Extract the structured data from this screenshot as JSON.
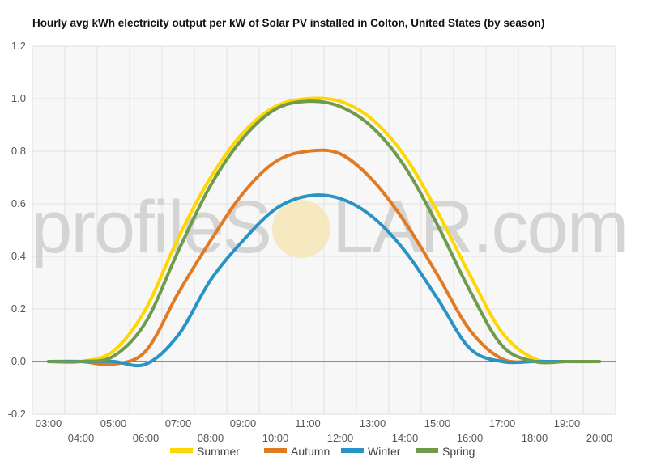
{
  "chart_data": {
    "type": "line",
    "title": "Hourly avg kWh electricity output per kW of Solar PV installed in Colton, United States (by season)",
    "x": [
      "03:00",
      "04:00",
      "05:00",
      "06:00",
      "07:00",
      "08:00",
      "09:00",
      "10:00",
      "11:00",
      "12:00",
      "13:00",
      "14:00",
      "15:00",
      "16:00",
      "17:00",
      "18:00",
      "19:00",
      "20:00"
    ],
    "x_tick_labels": [
      "03:00",
      "04:00",
      "05:00",
      "06:00",
      "07:00",
      "08:00",
      "09:00",
      "10:00",
      "11:00",
      "12:00",
      "13:00",
      "14:00",
      "15:00",
      "16:00",
      "17:00",
      "18:00",
      "19:00",
      "20:00"
    ],
    "y_tick_labels": [
      "1.2",
      "1.0",
      "0.8",
      "0.6",
      "0.4",
      "0.2",
      "0.0",
      "-0.2"
    ],
    "ylim": [
      -0.2,
      1.2
    ],
    "grid": true,
    "legend_position": "bottom",
    "series": [
      {
        "name": "Summer",
        "color": "#FFD700",
        "values": [
          0,
          0,
          0.04,
          0.2,
          0.47,
          0.7,
          0.87,
          0.97,
          1.0,
          0.99,
          0.92,
          0.78,
          0.57,
          0.33,
          0.11,
          0.01,
          0,
          0
        ]
      },
      {
        "name": "Autumn",
        "color": "#E07B24",
        "values": [
          0,
          0,
          -0.01,
          0.04,
          0.26,
          0.46,
          0.64,
          0.76,
          0.8,
          0.79,
          0.69,
          0.53,
          0.33,
          0.12,
          0.01,
          0,
          0,
          0
        ]
      },
      {
        "name": "Winter",
        "color": "#2A93C5",
        "values": [
          0,
          0,
          0,
          -0.01,
          0.1,
          0.31,
          0.46,
          0.58,
          0.63,
          0.62,
          0.55,
          0.42,
          0.24,
          0.05,
          0,
          0,
          0,
          0
        ]
      },
      {
        "name": "Spring",
        "color": "#6F9B4C",
        "values": [
          0,
          0,
          0.02,
          0.15,
          0.42,
          0.67,
          0.85,
          0.96,
          0.99,
          0.97,
          0.89,
          0.74,
          0.52,
          0.27,
          0.06,
          0,
          0,
          0
        ]
      }
    ]
  },
  "watermark": {
    "text_left": "profileS",
    "text_right": "LAR.com"
  }
}
